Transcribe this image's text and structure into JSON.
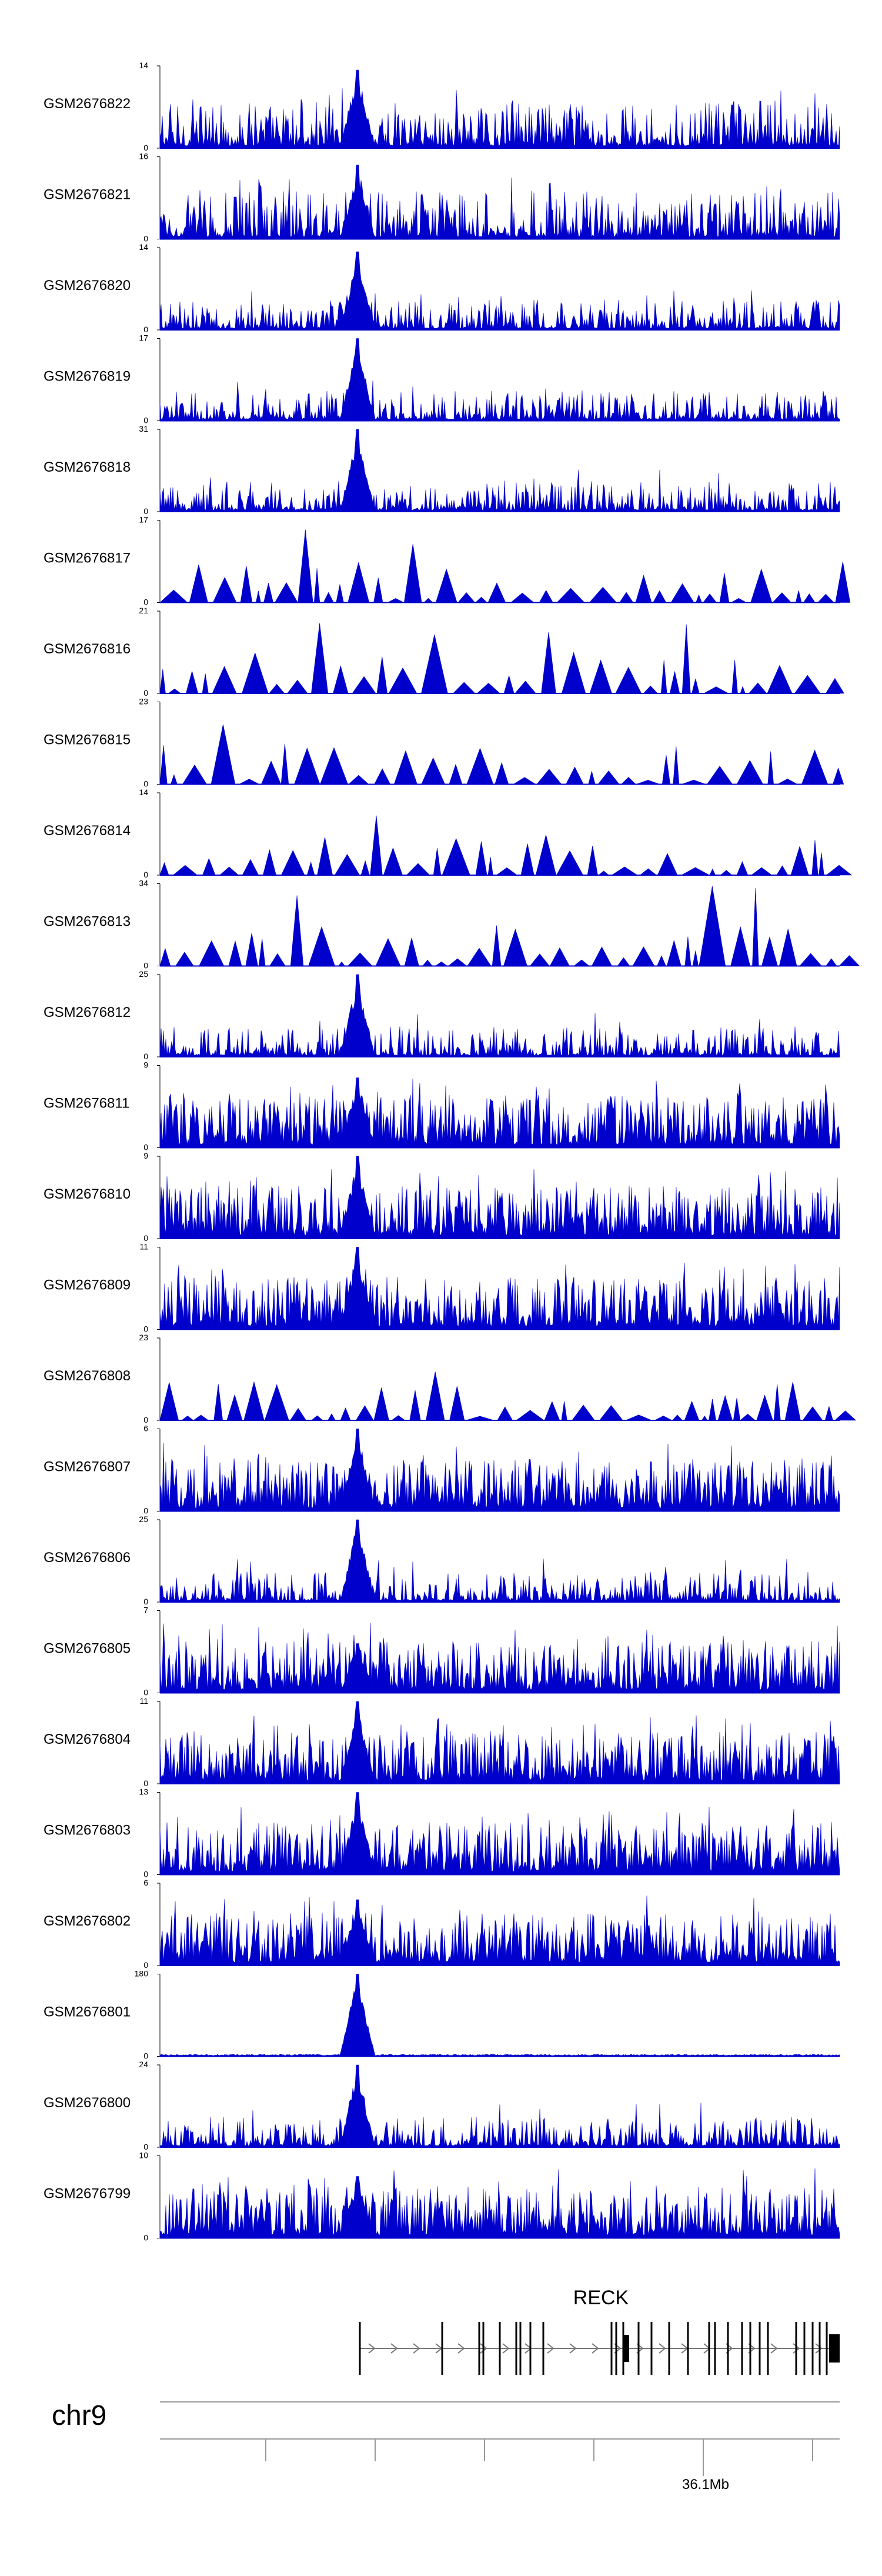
{
  "chart_data": {
    "type": "area",
    "fill_color": "#0000cc",
    "tracks": [
      {
        "name": "GSM2676822",
        "ymax": "14",
        "ymin": "0",
        "peak": 0.95,
        "profile": "spiky"
      },
      {
        "name": "GSM2676821",
        "ymax": "16",
        "ymin": "0",
        "peak": 0.9,
        "profile": "spiky"
      },
      {
        "name": "GSM2676820",
        "ymax": "14",
        "ymin": "0",
        "peak": 0.95,
        "profile": "low"
      },
      {
        "name": "GSM2676819",
        "ymax": "17",
        "ymin": "0",
        "peak": 1.0,
        "profile": "low"
      },
      {
        "name": "GSM2676818",
        "ymax": "31",
        "ymin": "0",
        "peak": 1.0,
        "profile": "low"
      },
      {
        "name": "GSM2676817",
        "ymax": "17",
        "ymin": "0",
        "peak": 0.45,
        "profile": "triangles"
      },
      {
        "name": "GSM2676816",
        "ymax": "21",
        "ymin": "0",
        "peak": 0.35,
        "profile": "triangles"
      },
      {
        "name": "GSM2676815",
        "ymax": "23",
        "ymin": "0",
        "peak": 0.35,
        "profile": "triangles"
      },
      {
        "name": "GSM2676814",
        "ymax": "14",
        "ymin": "0",
        "peak": 0.5,
        "profile": "triangles"
      },
      {
        "name": "GSM2676813",
        "ymax": "34",
        "ymin": "0",
        "peak": 0.3,
        "profile": "triangles"
      },
      {
        "name": "GSM2676812",
        "ymax": "25",
        "ymin": "0",
        "peak": 1.0,
        "profile": "low"
      },
      {
        "name": "GSM2676811",
        "ymax": "9",
        "ymin": "0",
        "peak": 0.85,
        "profile": "dense"
      },
      {
        "name": "GSM2676810",
        "ymax": "9",
        "ymin": "0",
        "peak": 1.0,
        "profile": "dense"
      },
      {
        "name": "GSM2676809",
        "ymax": "11",
        "ymin": "0",
        "peak": 1.0,
        "profile": "dense"
      },
      {
        "name": "GSM2676808",
        "ymax": "23",
        "ymin": "0",
        "peak": 0.4,
        "profile": "triangles"
      },
      {
        "name": "GSM2676807",
        "ymax": "6",
        "ymin": "0",
        "peak": 1.0,
        "profile": "dense"
      },
      {
        "name": "GSM2676806",
        "ymax": "25",
        "ymin": "0",
        "peak": 1.0,
        "profile": "low"
      },
      {
        "name": "GSM2676805",
        "ymax": "7",
        "ymin": "0",
        "peak": 0.6,
        "profile": "dense"
      },
      {
        "name": "GSM2676804",
        "ymax": "11",
        "ymin": "0",
        "peak": 1.0,
        "profile": "dense"
      },
      {
        "name": "GSM2676803",
        "ymax": "13",
        "ymin": "0",
        "peak": 1.0,
        "profile": "dense"
      },
      {
        "name": "GSM2676802",
        "ymax": "6",
        "ymin": "0",
        "peak": 0.8,
        "profile": "dense"
      },
      {
        "name": "GSM2676801",
        "ymax": "180",
        "ymin": "0",
        "peak": 1.0,
        "profile": "flat"
      },
      {
        "name": "GSM2676800",
        "ymax": "24",
        "ymin": "0",
        "peak": 1.0,
        "profile": "low"
      },
      {
        "name": "GSM2676799",
        "ymax": "10",
        "ymin": "0",
        "peak": 0.75,
        "profile": "dense"
      }
    ],
    "gene": {
      "name": "RECK"
    },
    "chromosome": "chr9",
    "scale_label": "36.1Mb"
  }
}
